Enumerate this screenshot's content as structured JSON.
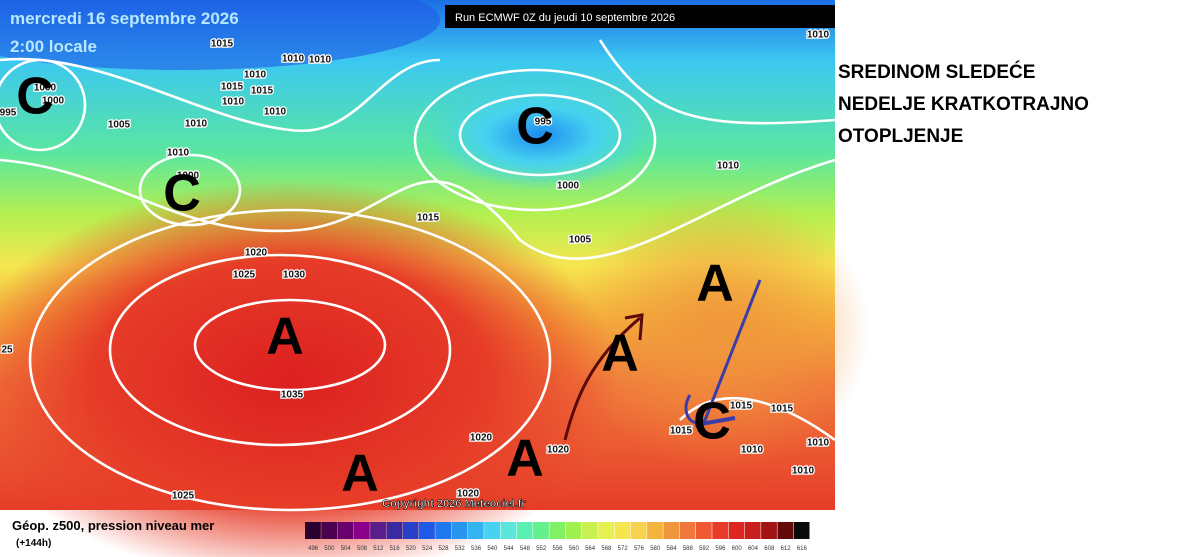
{
  "header": {
    "date": "mercredi 16 septembre 2026",
    "time": "2:00 locale",
    "run": "Run ECMWF 0Z du jeudi 10 septembre 2026"
  },
  "map": {
    "pressure_labels": [
      1010,
      1015,
      1010,
      1010,
      1010,
      1015,
      1015,
      1010,
      1010,
      1000,
      1000,
      995,
      1005,
      1010,
      1010,
      1000,
      995,
      1000,
      1010,
      1015,
      1005,
      1020,
      1025,
      1030,
      1035,
      1025,
      1020,
      1020,
      1020,
      1015,
      1015,
      1015,
      1010,
      1010,
      1010,
      25
    ],
    "centers": [
      "C",
      "C",
      "C",
      "A",
      "A",
      "A",
      "A",
      "A",
      "C"
    ],
    "copyright": "Copyright 2026 Meteociel.fr"
  },
  "legend": {
    "title": "Géop. z500, pression niveau mer",
    "lead": "(+144h)",
    "scale": [
      496,
      500,
      504,
      508,
      512,
      516,
      520,
      524,
      528,
      532,
      536,
      540,
      544,
      548,
      552,
      556,
      560,
      564,
      568,
      572,
      576,
      580,
      584,
      588,
      592,
      596,
      600,
      604,
      608,
      612,
      616
    ]
  },
  "caption": [
    "SREDINOM SLEDEĆE",
    "NEDELJE KRATKOTRAJNO",
    "OTOPLJENJE"
  ]
}
